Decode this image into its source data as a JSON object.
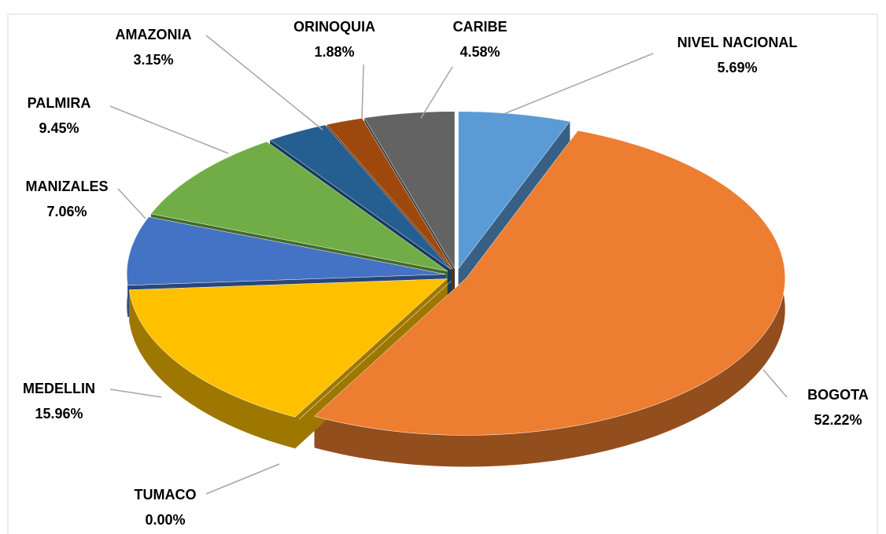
{
  "chart_data": {
    "type": "pie",
    "categories": [
      "NIVEL NACIONAL",
      "BOGOTA",
      "TUMACO",
      "MEDELLIN",
      "MANIZALES",
      "PALMIRA",
      "AMAZONIA",
      "ORINOQUIA",
      "CARIBE"
    ],
    "values": [
      5.69,
      52.22,
      0,
      15.96,
      7.06,
      9.45,
      3.15,
      1.88,
      4.58
    ],
    "value_labels": [
      "5.69%",
      "52.22%",
      "0.00%",
      "15.96%",
      "7.06%",
      "9.45%",
      "3.15%",
      "1.88%",
      "4.58%"
    ],
    "colors": [
      "#5b9bd5",
      "#ed7d31",
      "#a5a5a5",
      "#ffc000",
      "#4472c4",
      "#70ad47",
      "#255e91",
      "#9e480e",
      "#636363"
    ]
  }
}
